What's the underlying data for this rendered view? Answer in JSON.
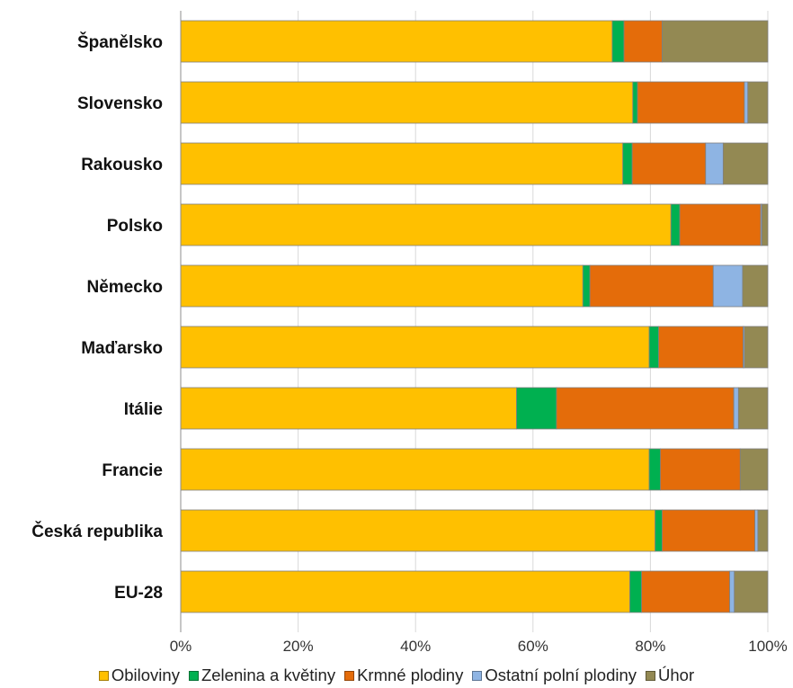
{
  "chart_data": {
    "type": "bar",
    "orientation": "horizontal",
    "stacked": "percent",
    "categories": [
      "Španělsko",
      "Slovensko",
      "Rakousko",
      "Polsko",
      "Německo",
      "Maďarsko",
      "Itálie",
      "Francie",
      "Česká republika",
      "EU-28"
    ],
    "series": [
      {
        "name": "Obiloviny",
        "color": "#FFC000",
        "values": [
          73.5,
          77.0,
          75.3,
          83.5,
          68.5,
          79.8,
          57.2,
          79.8,
          80.8,
          76.5
        ]
      },
      {
        "name": "Zelenina a květiny",
        "color": "#00B050",
        "values": [
          2.0,
          0.8,
          1.6,
          1.5,
          1.2,
          1.6,
          6.8,
          1.9,
          1.2,
          2.0
        ]
      },
      {
        "name": "Krmné plodiny",
        "color": "#E46C0A",
        "values": [
          6.5,
          18.2,
          12.5,
          13.8,
          21.0,
          14.4,
          30.2,
          13.6,
          15.8,
          15.0
        ]
      },
      {
        "name": "Ostatní polní plodiny",
        "color": "#8EB4E3",
        "values": [
          0.0,
          0.6,
          3.0,
          0.2,
          5.0,
          0.2,
          0.8,
          0.0,
          0.5,
          0.8
        ]
      },
      {
        "name": "Úhor",
        "color": "#938953",
        "values": [
          18.0,
          3.4,
          7.6,
          1.0,
          4.3,
          4.0,
          5.0,
          4.7,
          1.7,
          5.7
        ]
      }
    ],
    "xlim": [
      0,
      100
    ],
    "xticks": [
      "0%",
      "20%",
      "40%",
      "60%",
      "80%",
      "100%"
    ],
    "legend_position": "bottom",
    "grid": "vertical"
  }
}
